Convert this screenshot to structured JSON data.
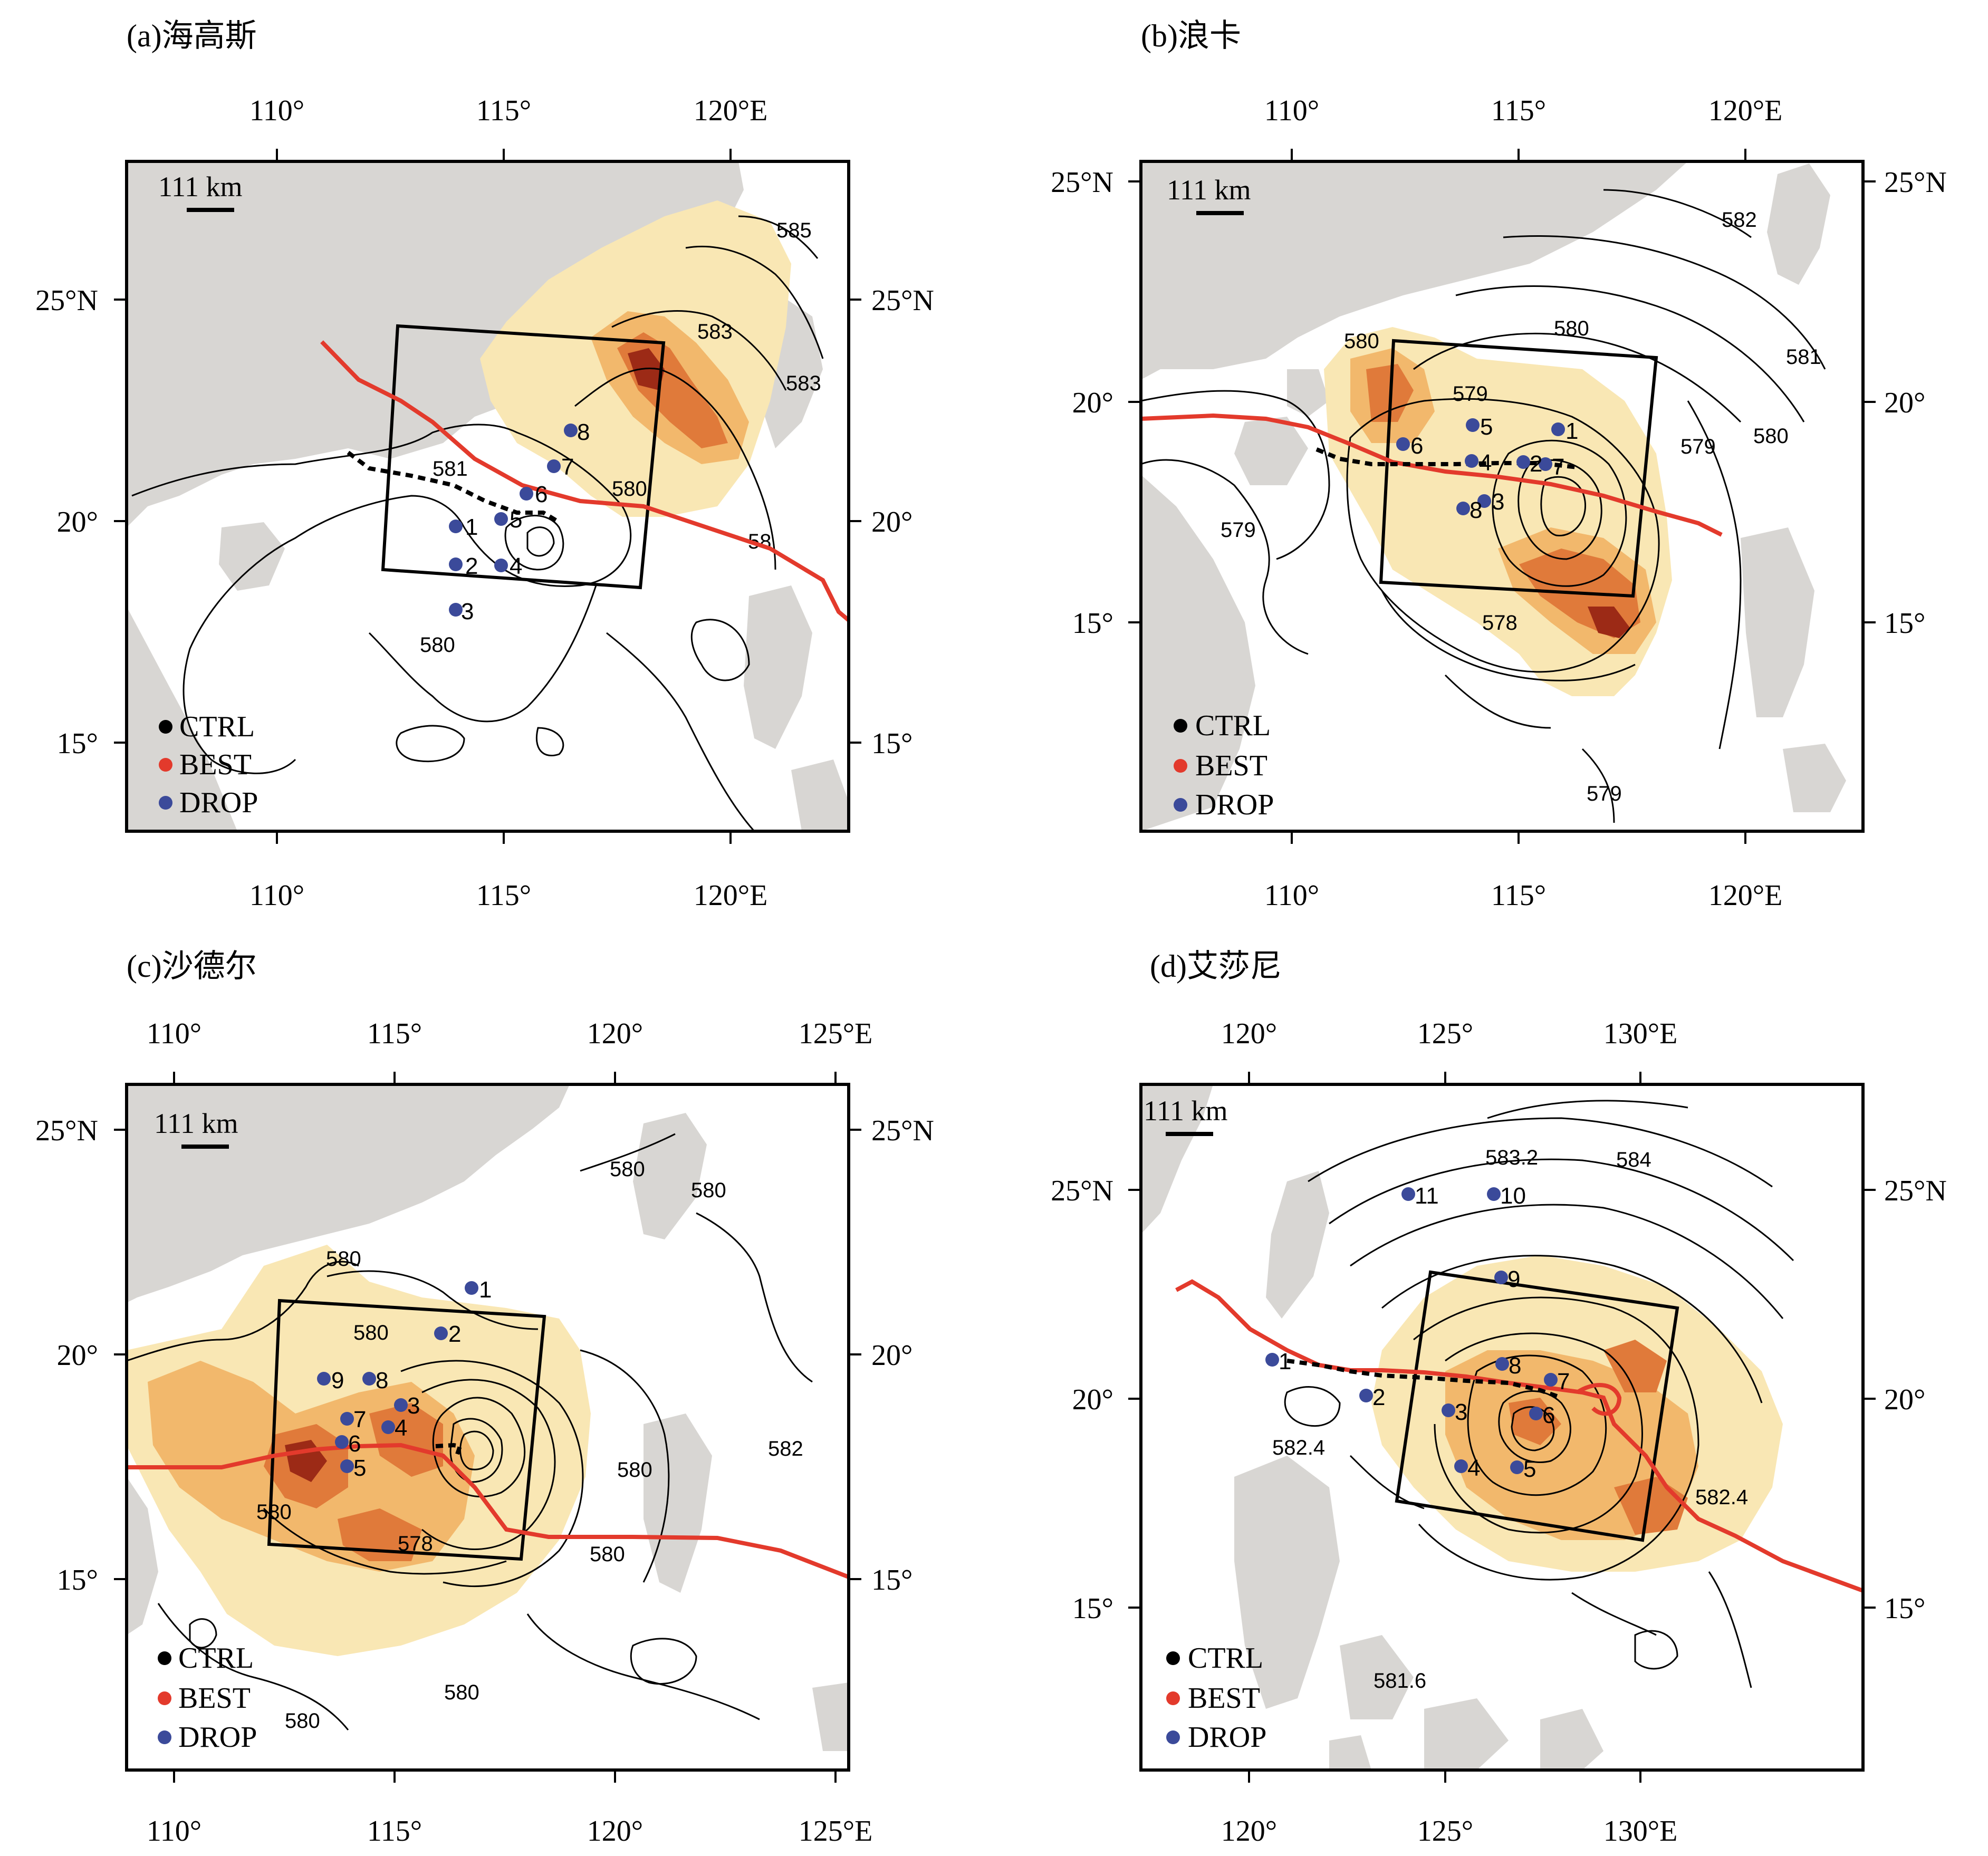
{
  "panels": [
    {
      "id": "a",
      "title": "(a)海高斯",
      "lon_ticks": [
        "110°",
        "115°",
        "120°E"
      ],
      "lat_ticks": [
        "25°N",
        "20°",
        "15°"
      ],
      "scale_label": "111 km",
      "legend": [
        "CTRL",
        "BEST",
        "DROP"
      ],
      "drop_labels": [
        "1",
        "2",
        "3",
        "4",
        "5",
        "6",
        "7",
        "8"
      ],
      "contour_labels": [
        "585",
        "583",
        "583",
        "581",
        "580",
        "580",
        "58"
      ]
    },
    {
      "id": "b",
      "title": "(b)浪卡",
      "lon_ticks": [
        "110°",
        "115°",
        "120°E"
      ],
      "lat_ticks": [
        "25°N",
        "20°",
        "15°"
      ],
      "scale_label": "111 km",
      "legend": [
        "CTRL",
        "BEST",
        "DROP"
      ],
      "drop_labels": [
        "1",
        "2",
        "3",
        "4",
        "5",
        "6",
        "7",
        "8"
      ],
      "contour_labels": [
        "582",
        "580",
        "581",
        "580",
        "579",
        "579",
        "580",
        "579",
        "578",
        "579"
      ]
    },
    {
      "id": "c",
      "title": "(c)沙德尔",
      "lon_ticks": [
        "110°",
        "115°",
        "120°",
        "125°E"
      ],
      "lat_ticks": [
        "25°N",
        "20°",
        "15°"
      ],
      "scale_label": "111 km",
      "legend": [
        "CTRL",
        "BEST",
        "DROP"
      ],
      "drop_labels": [
        "1",
        "2",
        "3",
        "4",
        "5",
        "6",
        "7",
        "8",
        "9"
      ],
      "contour_labels": [
        "580",
        "580",
        "580",
        "580",
        "580",
        "582",
        "580",
        "578",
        "580",
        "580",
        "580"
      ]
    },
    {
      "id": "d",
      "title": "(d)艾莎尼",
      "lon_ticks": [
        "120°",
        "125°",
        "130°E"
      ],
      "lat_ticks": [
        "25°N",
        "20°",
        "15°"
      ],
      "scale_label": "111 km",
      "legend": [
        "CTRL",
        "BEST",
        "DROP"
      ],
      "drop_labels": [
        "1",
        "2",
        "3",
        "4",
        "5",
        "6",
        "7",
        "8",
        "9",
        "10",
        "11"
      ],
      "contour_labels": [
        "583.2",
        "584",
        "582.4",
        "582.4",
        "581.6"
      ]
    }
  ],
  "colors": {
    "best_track": "#e33a2c",
    "ctrl_track": "#000000",
    "drop": "#3b4a9a",
    "land": "#d8d6d3",
    "shade_light": "#f9e7b4",
    "shade_mid": "#f2b86c",
    "shade_dark": "#e07a3a",
    "shade_core": "#9c2a16"
  },
  "icons": [
    "ctrl-marker-icon",
    "best-marker-icon",
    "drop-marker-icon"
  ]
}
